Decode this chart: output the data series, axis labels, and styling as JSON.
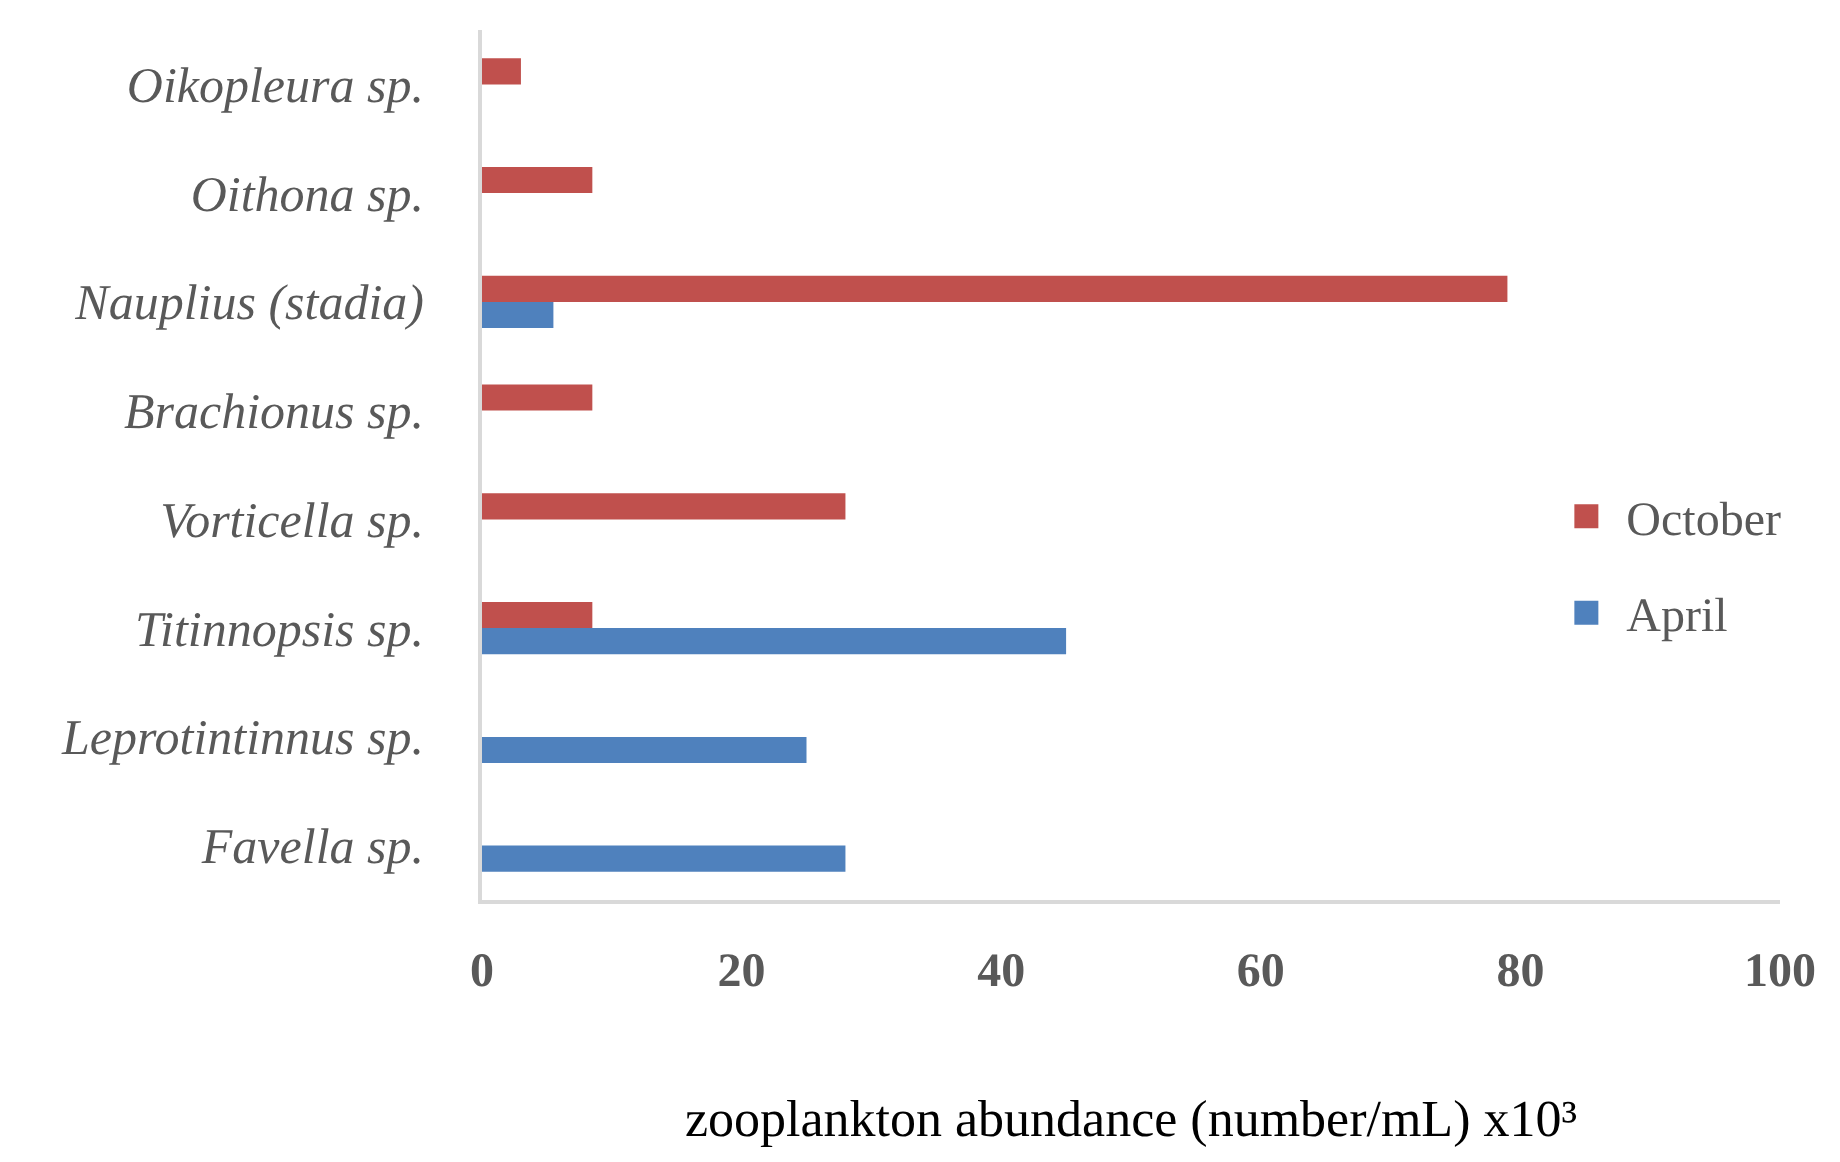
{
  "chart_data": {
    "type": "bar",
    "orientation": "horizontal",
    "categories": [
      "Oikopleura sp.",
      "Oithona sp.",
      "Nauplius (stadia)",
      "Brachionus sp.",
      "Vorticella sp.",
      "Titinnopsis sp.",
      "Leprotintinnus sp.",
      "Favella sp."
    ],
    "series": [
      {
        "name": "October",
        "color": "#c0504d",
        "values": [
          3,
          8.5,
          79,
          8.5,
          28,
          8.5,
          null,
          null
        ]
      },
      {
        "name": "April",
        "color": "#4f81bd",
        "values": [
          null,
          null,
          5.5,
          null,
          null,
          45,
          25,
          28
        ]
      }
    ],
    "xlabel": "zooplankton abundance (number/mL) x10³",
    "xlim": [
      0,
      100
    ],
    "xticks": [
      0,
      20,
      40,
      60,
      80,
      100
    ],
    "grid": false,
    "legend": "right"
  }
}
